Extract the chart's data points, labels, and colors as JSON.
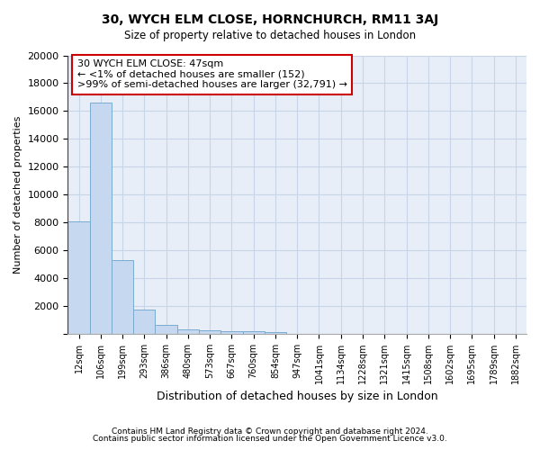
{
  "title": "30, WYCH ELM CLOSE, HORNCHURCH, RM11 3AJ",
  "subtitle": "Size of property relative to detached houses in London",
  "xlabel": "Distribution of detached houses by size in London",
  "ylabel": "Number of detached properties",
  "bar_color": "#c5d8ef",
  "bar_edge_color": "#7aabcf",
  "categories": [
    "12sqm",
    "106sqm",
    "199sqm",
    "293sqm",
    "386sqm",
    "480sqm",
    "573sqm",
    "667sqm",
    "760sqm",
    "854sqm",
    "947sqm",
    "1041sqm",
    "1134sqm",
    "1228sqm",
    "1321sqm",
    "1415sqm",
    "1508sqm",
    "1602sqm",
    "1695sqm",
    "1789sqm",
    "1882sqm"
  ],
  "values": [
    8100,
    16600,
    5300,
    1750,
    650,
    350,
    230,
    190,
    170,
    140,
    0,
    0,
    0,
    0,
    0,
    0,
    0,
    0,
    0,
    0,
    0
  ],
  "ylim": [
    0,
    20000
  ],
  "yticks": [
    0,
    2000,
    4000,
    6000,
    8000,
    10000,
    12000,
    14000,
    16000,
    18000,
    20000
  ],
  "annotation_box_text": "30 WYCH ELM CLOSE: 47sqm\n← <1% of detached houses are smaller (152)\n>99% of semi-detached houses are larger (32,791) →",
  "vline_color": "#cc0000",
  "box_edge_color": "#cc0000",
  "footnote1": "Contains HM Land Registry data © Crown copyright and database right 2024.",
  "footnote2": "Contains public sector information licensed under the Open Government Licence v3.0.",
  "grid_color": "#c8d4e8",
  "background_color": "#e8eef8"
}
